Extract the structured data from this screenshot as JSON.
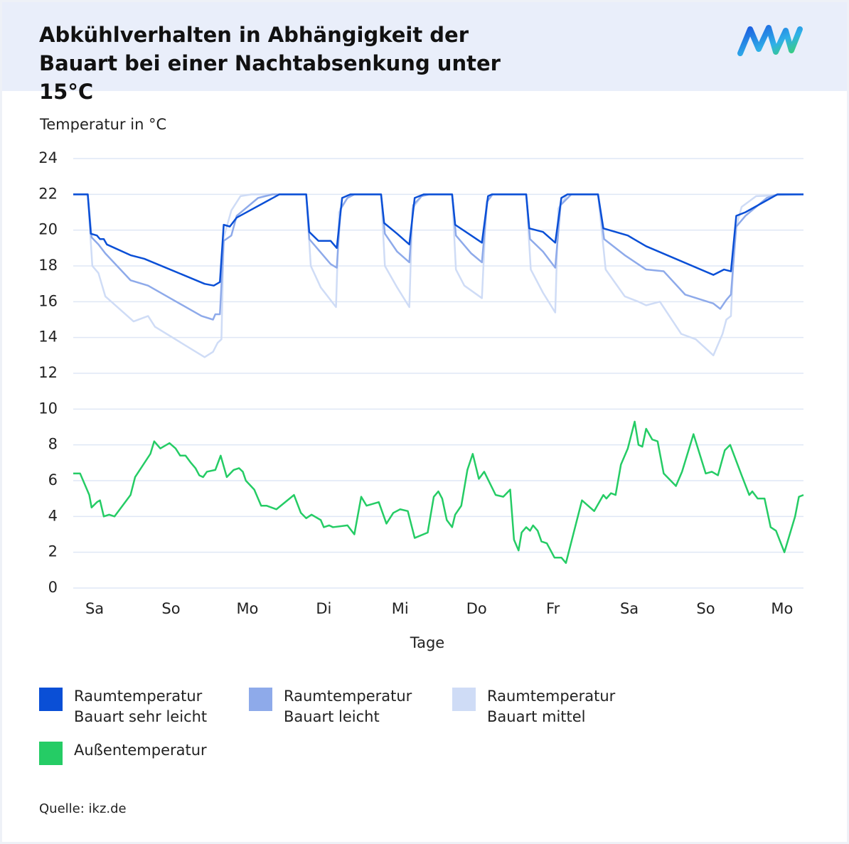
{
  "chart_data": {
    "type": "line",
    "title": "Abkühlverhalten in Abhängigkeit der Bauart bei einer Nachtabsenkung unter 15°C",
    "y_label": "Temperatur in °C",
    "x_label": "Tage",
    "source": "Quelle: ikz.de",
    "xlim": [
      -0.28,
      9.28
    ],
    "xticks": [
      {
        "value": 0,
        "label": "Sa"
      },
      {
        "value": 1,
        "label": "So"
      },
      {
        "value": 2,
        "label": "Mo"
      },
      {
        "value": 3,
        "label": "Di"
      },
      {
        "value": 4,
        "label": "Mi"
      },
      {
        "value": 5,
        "label": "Do"
      },
      {
        "value": 6,
        "label": "Fr"
      },
      {
        "value": 7,
        "label": "Sa"
      },
      {
        "value": 8,
        "label": "So"
      },
      {
        "value": 9,
        "label": "Mo"
      }
    ],
    "ylim": [
      0,
      24
    ],
    "yticks": [
      0,
      2,
      4,
      6,
      8,
      10,
      12,
      14,
      16,
      18,
      20,
      22,
      24
    ],
    "grid": true,
    "series": [
      {
        "name": "Raumtemperatur Bauart sehr leicht",
        "color": "#0a4fd6",
        "x": [
          -0.28,
          -0.09,
          -0.05,
          0.03,
          0.07,
          0.12,
          0.16,
          0.47,
          0.65,
          1.44,
          1.56,
          1.64,
          1.69,
          1.77,
          1.86,
          2.42,
          2.77,
          2.81,
          2.93,
          3.09,
          3.17,
          3.24,
          3.35,
          3.75,
          3.79,
          3.96,
          4.12,
          4.19,
          4.31,
          4.68,
          4.72,
          4.93,
          5.07,
          5.15,
          5.2,
          5.65,
          5.69,
          5.87,
          6.03,
          6.11,
          6.19,
          6.59,
          6.66,
          6.98,
          7.22,
          8.1,
          8.24,
          8.33,
          8.4,
          8.52,
          8.94,
          9.28
        ],
        "values": [
          22,
          22,
          19.8,
          19.7,
          19.5,
          19.5,
          19.2,
          18.6,
          18.4,
          17.0,
          16.9,
          17.1,
          20.3,
          20.2,
          20.7,
          22,
          22,
          19.9,
          19.4,
          19.4,
          19.0,
          21.8,
          22,
          22,
          20.4,
          19.8,
          19.2,
          21.8,
          22,
          22,
          20.3,
          19.7,
          19.3,
          21.9,
          22,
          22,
          20.1,
          19.9,
          19.3,
          21.8,
          22,
          22,
          20.1,
          19.7,
          19.1,
          17.5,
          17.8,
          17.7,
          20.8,
          21.0,
          22,
          22
        ]
      },
      {
        "name": "Raumtemperatur Bauart leicht",
        "color": "#8eaaea",
        "x": [
          -0.28,
          -0.09,
          -0.04,
          0.05,
          0.14,
          0.47,
          0.7,
          1.4,
          1.55,
          1.58,
          1.64,
          1.69,
          1.79,
          1.86,
          2.14,
          2.33,
          2.77,
          2.81,
          2.95,
          3.09,
          3.17,
          3.22,
          3.31,
          3.4,
          3.75,
          3.8,
          3.96,
          4.12,
          4.17,
          4.28,
          4.38,
          4.68,
          4.73,
          4.93,
          5.07,
          5.14,
          5.21,
          5.65,
          5.7,
          5.87,
          6.03,
          6.1,
          6.24,
          6.59,
          6.67,
          6.94,
          7.22,
          7.45,
          7.73,
          8.1,
          8.19,
          8.27,
          8.33,
          8.4,
          8.52,
          8.8,
          8.94,
          9.28
        ],
        "values": [
          22,
          22,
          19.6,
          19.2,
          18.7,
          17.2,
          16.9,
          15.2,
          15.0,
          15.3,
          15.3,
          19.4,
          19.7,
          20.8,
          21.8,
          22,
          22,
          19.5,
          18.8,
          18.1,
          17.9,
          21.2,
          21.8,
          22,
          22,
          19.8,
          18.8,
          18.2,
          21.4,
          21.9,
          22,
          22,
          19.7,
          18.7,
          18.2,
          21.6,
          22,
          22,
          19.5,
          18.8,
          17.9,
          21.4,
          22,
          22,
          19.5,
          18.6,
          17.8,
          17.7,
          16.4,
          15.9,
          15.6,
          16.1,
          16.4,
          20.2,
          20.8,
          21.8,
          22,
          22
        ]
      },
      {
        "name": "Raumtemperatur Bauart mittel",
        "color": "#cfdcf6",
        "x": [
          -0.28,
          -0.09,
          -0.03,
          0.05,
          0.14,
          0.51,
          0.7,
          0.79,
          1.44,
          1.55,
          1.61,
          1.66,
          1.69,
          1.79,
          1.91,
          2.05,
          2.77,
          2.83,
          2.96,
          3.16,
          3.2,
          3.31,
          3.4,
          3.75,
          3.8,
          3.96,
          4.12,
          4.16,
          4.28,
          4.38,
          4.68,
          4.73,
          4.84,
          5.07,
          5.13,
          5.21,
          5.65,
          5.71,
          5.87,
          6.03,
          6.07,
          6.19,
          6.59,
          6.69,
          6.94,
          7.12,
          7.22,
          7.4,
          7.68,
          7.87,
          8.1,
          8.22,
          8.27,
          8.33,
          8.38,
          8.47,
          8.66,
          9.28
        ],
        "values": [
          22,
          22,
          18.0,
          17.6,
          16.3,
          14.9,
          15.2,
          14.6,
          12.9,
          13.2,
          13.7,
          13.9,
          19.6,
          21.1,
          21.9,
          22,
          22,
          18.0,
          16.8,
          15.7,
          21.0,
          21.8,
          22,
          22,
          18.0,
          16.8,
          15.7,
          21.2,
          21.9,
          22,
          22,
          17.8,
          16.9,
          16.2,
          21.6,
          22,
          22,
          17.8,
          16.5,
          15.4,
          21.2,
          22,
          22,
          17.8,
          16.3,
          16.0,
          15.8,
          16.0,
          14.2,
          13.9,
          13.0,
          14.2,
          15.0,
          15.2,
          19.9,
          21.3,
          21.9,
          22
        ]
      },
      {
        "name": "Außentemperatur",
        "color": "#25cc65",
        "x": [
          -0.28,
          -0.19,
          -0.07,
          -0.04,
          0.03,
          0.07,
          0.12,
          0.19,
          0.26,
          0.47,
          0.53,
          0.73,
          0.78,
          0.86,
          0.98,
          1.06,
          1.12,
          1.19,
          1.26,
          1.32,
          1.37,
          1.42,
          1.47,
          1.58,
          1.65,
          1.73,
          1.82,
          1.89,
          1.94,
          1.98,
          2.09,
          2.18,
          2.25,
          2.38,
          2.61,
          2.7,
          2.77,
          2.84,
          2.96,
          3.0,
          3.07,
          3.12,
          3.31,
          3.4,
          3.49,
          3.56,
          3.72,
          3.82,
          3.91,
          4.0,
          4.1,
          4.19,
          4.36,
          4.44,
          4.5,
          4.55,
          4.61,
          4.68,
          4.72,
          4.8,
          4.88,
          4.95,
          5.03,
          5.1,
          5.25,
          5.35,
          5.44,
          5.49,
          5.55,
          5.59,
          5.65,
          5.7,
          5.74,
          5.8,
          5.85,
          5.92,
          6.02,
          6.11,
          6.17,
          6.38,
          6.54,
          6.66,
          6.7,
          6.76,
          6.82,
          6.89,
          6.98,
          7.07,
          7.12,
          7.17,
          7.22,
          7.3,
          7.37,
          7.45,
          7.61,
          7.69,
          7.84,
          8.0,
          8.08,
          8.16,
          8.25,
          8.32,
          8.47,
          8.57,
          8.61,
          8.68,
          8.77,
          8.85,
          8.92,
          9.03,
          9.17,
          9.22,
          9.28
        ],
        "values": [
          6.4,
          6.4,
          5.2,
          4.5,
          4.8,
          4.9,
          4.0,
          4.1,
          4.0,
          5.2,
          6.2,
          7.5,
          8.2,
          7.8,
          8.1,
          7.8,
          7.4,
          7.4,
          7.0,
          6.7,
          6.3,
          6.2,
          6.5,
          6.6,
          7.4,
          6.2,
          6.6,
          6.7,
          6.5,
          6.0,
          5.5,
          4.6,
          4.6,
          4.4,
          5.2,
          4.2,
          3.9,
          4.1,
          3.8,
          3.4,
          3.5,
          3.4,
          3.5,
          3.0,
          5.1,
          4.6,
          4.8,
          3.6,
          4.2,
          4.4,
          4.3,
          2.8,
          3.1,
          5.1,
          5.4,
          5.0,
          3.8,
          3.4,
          4.1,
          4.6,
          6.6,
          7.5,
          6.1,
          6.5,
          5.2,
          5.1,
          5.5,
          2.7,
          2.1,
          3.1,
          3.4,
          3.2,
          3.5,
          3.2,
          2.6,
          2.5,
          1.7,
          1.7,
          1.4,
          4.9,
          4.3,
          5.2,
          5.0,
          5.3,
          5.2,
          6.9,
          7.8,
          9.3,
          8.0,
          7.9,
          8.9,
          8.3,
          8.2,
          6.4,
          5.7,
          6.5,
          8.6,
          6.4,
          6.5,
          6.3,
          7.7,
          8.0,
          6.3,
          5.2,
          5.4,
          5.0,
          5.0,
          3.4,
          3.2,
          2.0,
          4.0,
          5.1,
          5.2
        ]
      }
    ]
  }
}
